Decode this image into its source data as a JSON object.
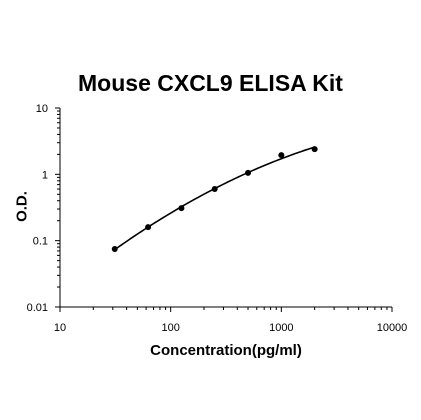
{
  "chart_data": {
    "type": "scatter",
    "title": "Mouse CXCL9 ELISA Kit",
    "xlabel": "Concentration(pg/ml)",
    "ylabel": "O.D.",
    "x_scale": "log",
    "y_scale": "log",
    "xlim": [
      10,
      10000
    ],
    "ylim": [
      0.01,
      10
    ],
    "x_ticks": [
      "10",
      "100",
      "1000",
      "10000"
    ],
    "y_ticks": [
      "0.01",
      "0.1",
      "1",
      "10"
    ],
    "grid": false,
    "fit_line": true,
    "x": [
      31.25,
      62.5,
      125,
      250,
      500,
      1000,
      2000
    ],
    "y": [
      0.075,
      0.16,
      0.31,
      0.6,
      1.05,
      1.95,
      2.4
    ]
  }
}
